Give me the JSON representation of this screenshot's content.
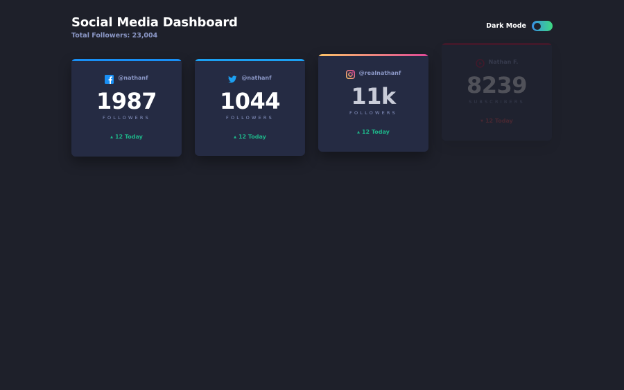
{
  "header": {
    "title": "Social Media Dashboard",
    "subtitle": "Total Followers: 23,004"
  },
  "toggle": {
    "label": "Dark Mode"
  },
  "cards": [
    {
      "platform_icon": "facebook-icon",
      "handle": "@nathanf",
      "count": "1987",
      "unit": "FOLLOWERS",
      "today": "12 Today",
      "accent": "#198ff5"
    },
    {
      "platform_icon": "twitter-icon",
      "handle": "@nathanf",
      "count": "1044",
      "unit": "FOLLOWERS",
      "today": "12 Today",
      "accent": "#1ca0f2"
    },
    {
      "platform_icon": "instagram-icon",
      "handle": "@realnathanf",
      "count": "11k",
      "unit": "FOLLOWERS",
      "today": "12 Today",
      "accent": "#df4996"
    },
    {
      "platform_icon": "youtube-icon",
      "handle": "Nathan F.",
      "count": "8239",
      "unit": "SUBSCRIBERS",
      "today": "12 Today",
      "accent": "#c4032a"
    }
  ],
  "colors": {
    "background": "#1e202a",
    "card": "#252b43",
    "positive": "#1eb589",
    "negative": "#dc414c",
    "muted": "#8b97c6"
  }
}
